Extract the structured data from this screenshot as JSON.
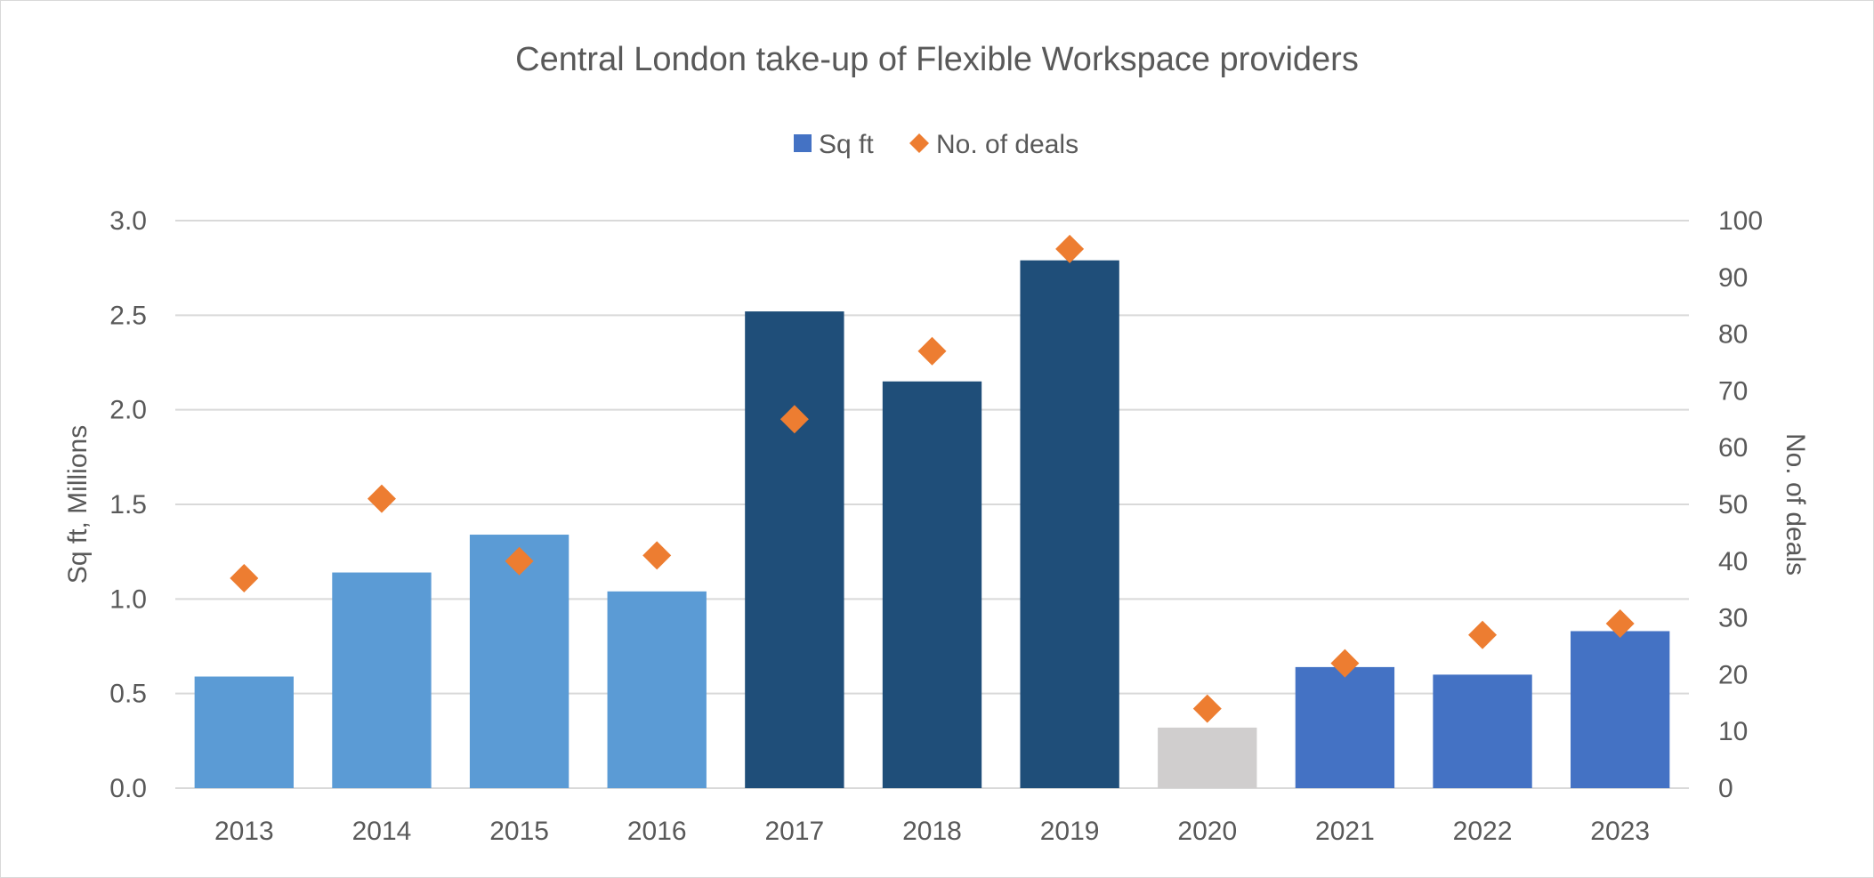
{
  "chart_data": {
    "type": "bar",
    "title": "Central London take-up of Flexible Workspace providers",
    "categories": [
      "2013",
      "2014",
      "2015",
      "2016",
      "2017",
      "2018",
      "2019",
      "2020",
      "2021",
      "2022",
      "2023"
    ],
    "series": [
      {
        "name": "Sq ft",
        "type": "bar",
        "axis": "left",
        "values": [
          0.59,
          1.14,
          1.34,
          1.04,
          2.52,
          2.15,
          2.79,
          0.32,
          0.64,
          0.6,
          0.83
        ],
        "colors": [
          "#5b9bd5",
          "#5b9bd5",
          "#5b9bd5",
          "#5b9bd5",
          "#1f4e79",
          "#1f4e79",
          "#1f4e79",
          "#d0cece",
          "#4472c4",
          "#4472c4",
          "#4472c4"
        ],
        "legend_color": "#4472c4"
      },
      {
        "name": "No. of deals",
        "type": "scatter",
        "marker": "diamond",
        "axis": "right",
        "values": [
          37,
          51,
          40,
          41,
          65,
          77,
          95,
          14,
          22,
          27,
          29
        ],
        "color": "#ed7d31"
      }
    ],
    "y_left": {
      "label": "Sq ft, Millions",
      "range": [
        0,
        3
      ],
      "ticks": [
        "0.0",
        "0.5",
        "1.0",
        "1.5",
        "2.0",
        "2.5",
        "3.0"
      ],
      "tick_values": [
        0,
        0.5,
        1.0,
        1.5,
        2.0,
        2.5,
        3.0
      ]
    },
    "y_right": {
      "label": "No. of deals",
      "range": [
        0,
        100
      ],
      "ticks": [
        "0",
        "10",
        "20",
        "30",
        "40",
        "50",
        "60",
        "70",
        "80",
        "90",
        "100"
      ],
      "tick_values": [
        0,
        10,
        20,
        30,
        40,
        50,
        60,
        70,
        80,
        90,
        100
      ]
    },
    "grid": true,
    "legend_position": "top-center",
    "gridline_color": "#d9d9d9",
    "text_color": "#595959"
  }
}
